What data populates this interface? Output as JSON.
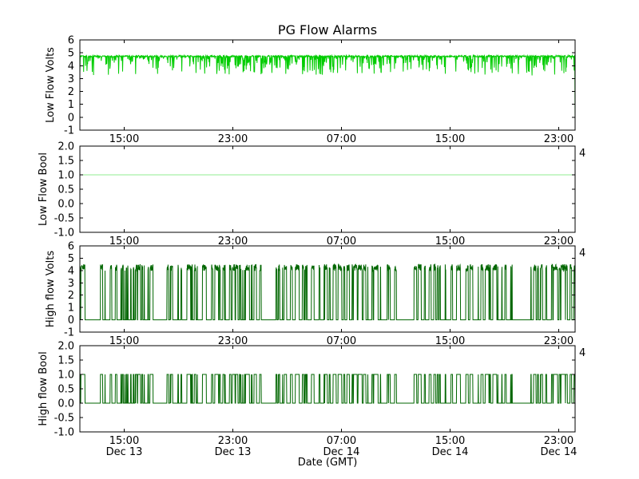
{
  "chart_data": {
    "type": "line",
    "title": "PG Flow Alarms",
    "xlabel": "Date (GMT)",
    "legend": "none",
    "grid": false,
    "x_ticks": {
      "labels": [
        "15:00",
        "23:00",
        "07:00",
        "15:00",
        "23:00"
      ],
      "date_labels": [
        "Dec 13",
        "Dec 13",
        "Dec 14",
        "Dec 14",
        "Dec 14"
      ],
      "fractions": [
        0.0895,
        0.3089,
        0.5282,
        0.7476,
        0.9669
      ]
    },
    "subplots": [
      {
        "id": "low-flow-volts",
        "ylabel": "Low Flow Volts",
        "ylim": [
          -1,
          6
        ],
        "ytick_values": [
          -1,
          0,
          1,
          2,
          3,
          4,
          5,
          6
        ],
        "ytick_labels": [
          "-1",
          "0",
          "1",
          "2",
          "3",
          "4",
          "5",
          "6"
        ],
        "color": "#00cc00",
        "right_axis_label": "",
        "signal": {
          "pattern": "noisy-baseline",
          "baseline": 4.8,
          "dip_min": 3.35,
          "edge_drop": -0.3,
          "n": 1600,
          "seed": 7,
          "description": "Noisy line near 4.8 V with frequent downward spikes to ~3.4 V; sharp drop at the far right edge"
        }
      },
      {
        "id": "low-flow-bool",
        "ylabel": "Low Flow Bool",
        "ylim": [
          -1,
          2
        ],
        "ytick_values": [
          -1,
          -0.5,
          0,
          0.5,
          1,
          1.5,
          2
        ],
        "ytick_labels": [
          "-1.0",
          "-0.5",
          "0.0",
          "0.5",
          "1.0",
          "1.5",
          "2.0"
        ],
        "color": "#90ee90",
        "right_axis_label": "4",
        "signal": {
          "pattern": "constant",
          "value": 1.0,
          "description": "Constant at 1.0 across the full time range"
        }
      },
      {
        "id": "high-flow-volts",
        "ylabel": "High flow Volts",
        "ylim": [
          -1,
          6
        ],
        "ytick_values": [
          -1,
          0,
          1,
          2,
          3,
          4,
          5,
          6
        ],
        "ytick_labels": [
          "-1",
          "0",
          "1",
          "2",
          "3",
          "4",
          "5",
          "6"
        ],
        "color": "#006600",
        "right_axis_label": "4",
        "signal": {
          "pattern": "burst",
          "low": 0,
          "high": 4.15,
          "noise": 0.55,
          "n": 2400,
          "seed": 12,
          "description": "Dense rapid switching between 0 V and ~4.2 V across the whole time range"
        }
      },
      {
        "id": "high-flow-bool",
        "ylabel": "High flow Bool",
        "ylim": [
          -1,
          2
        ],
        "ytick_values": [
          -1,
          -0.5,
          0,
          0.5,
          1,
          1.5,
          2
        ],
        "ytick_labels": [
          "-1.0",
          "-0.5",
          "0.0",
          "0.5",
          "1.0",
          "1.5",
          "2.0"
        ],
        "color": "#006600",
        "right_axis_label": "4",
        "signal": {
          "pattern": "burst",
          "low": 0,
          "high": 1.0,
          "noise": 0,
          "n": 2400,
          "seed": 12,
          "description": "Boolean 0/1 bursts matching the high-flow volts switching pattern"
        }
      }
    ]
  }
}
